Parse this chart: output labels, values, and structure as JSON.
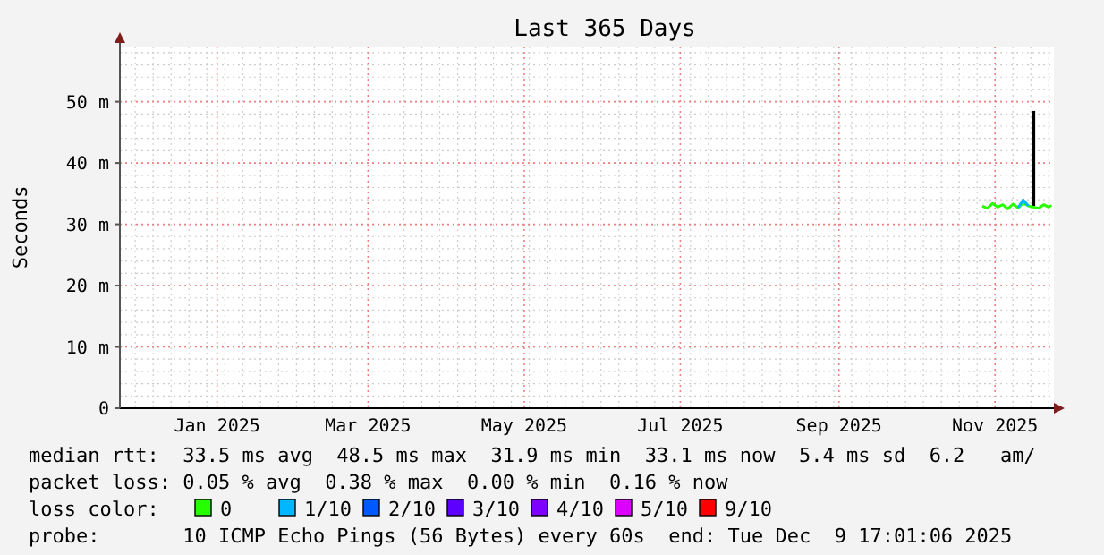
{
  "chart_data": {
    "type": "line",
    "title": "Last 365 Days",
    "ylabel": "Seconds",
    "xlim": [
      "2024-12-09",
      "2025-12-09"
    ],
    "xticks": [
      {
        "value": "2025-01-16",
        "label": "Jan 2025"
      },
      {
        "value": "2025-03-16",
        "label": "Mar 2025"
      },
      {
        "value": "2025-05-16",
        "label": "May 2025"
      },
      {
        "value": "2025-07-16",
        "label": "Jul 2025"
      },
      {
        "value": "2025-09-16",
        "label": "Sep 2025"
      },
      {
        "value": "2025-11-16",
        "label": "Nov 2025"
      }
    ],
    "ylim": [
      0,
      59
    ],
    "yticks": [
      {
        "value": 0,
        "label": "0"
      },
      {
        "value": 10,
        "label": "10 m"
      },
      {
        "value": 20,
        "label": "20 m"
      },
      {
        "value": 30,
        "label": "30 m"
      },
      {
        "value": 40,
        "label": "40 m"
      },
      {
        "value": 50,
        "label": "50 m"
      }
    ],
    "grid": true,
    "legend": "bottom",
    "legend_title": "loss color:",
    "marker": "none",
    "line_style": "solid",
    "series": [
      {
        "color": "#000000",
        "x": [
          "2025-12-01",
          "2025-12-01"
        ],
        "values": [
          33,
          48.5
        ]
      },
      {
        "name": "0",
        "color": "#26ff00",
        "x": [
          "2025-11-11",
          "2025-11-13",
          "2025-11-15",
          "2025-11-17",
          "2025-11-19",
          "2025-11-21",
          "2025-11-23",
          "2025-11-25",
          "2025-11-27",
          "2025-11-29",
          "2025-12-01",
          "2025-12-03",
          "2025-12-05",
          "2025-12-07",
          "2025-12-08"
        ],
        "values": [
          33,
          32.6,
          33.4,
          32.8,
          33.2,
          32.5,
          33.3,
          32.7,
          33.5,
          33,
          32.8,
          32.6,
          33.2,
          32.8,
          33.1
        ]
      },
      {
        "name": "1/10",
        "color": "#00b8ff",
        "x": [
          "2025-11-25",
          "2025-11-27",
          "2025-11-29"
        ],
        "values": [
          32.7,
          34,
          33
        ]
      },
      {
        "name": "2/10",
        "color": "#0059ff"
      },
      {
        "name": "3/10",
        "color": "#5e00ff"
      },
      {
        "name": "4/10",
        "color": "#7e00ff"
      },
      {
        "name": "5/10",
        "color": "#dd00ff"
      },
      {
        "name": "9/10",
        "color": "#ff0000"
      }
    ],
    "annotations": [
      "median rtt:  33.5 ms avg  48.5 ms max  31.9 ms min  33.1 ms now  5.4 ms sd  6.2   am/",
      "packet loss: 0.05 % avg  0.38 % max  0.00 % min  0.16 % now",
      "probe:       10 ICMP Echo Pings (56 Bytes) every 60s  end: Tue Dec  9 17:01:06 2025"
    ]
  }
}
